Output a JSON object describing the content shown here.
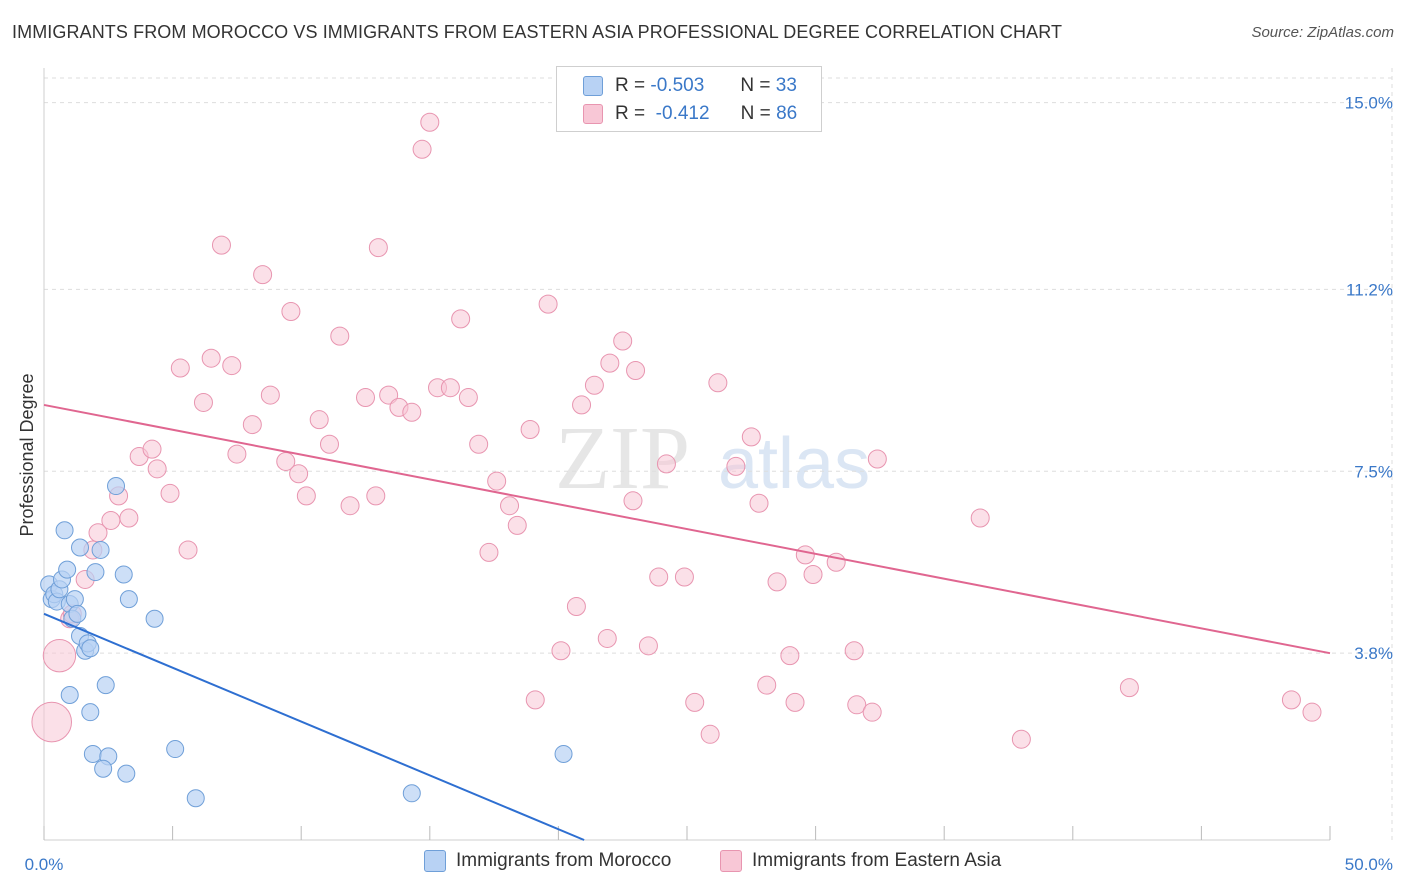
{
  "title": "IMMIGRANTS FROM MOROCCO VS IMMIGRANTS FROM EASTERN ASIA PROFESSIONAL DEGREE CORRELATION CHART",
  "source": "Source: ZipAtlas.com",
  "watermark": {
    "zip": "ZIP",
    "atlas": "atlas"
  },
  "legend": {
    "r_label": "R =",
    "n_label": "N =",
    "morocco": {
      "r": "-0.503",
      "n": "33"
    },
    "eastern_asia": {
      "r": "-0.412",
      "n": "86"
    }
  },
  "colors": {
    "morocco_fill": "#b8d2f4",
    "morocco_stroke": "#6f9fd8",
    "morocco_line": "#2e6fd1",
    "asia_fill": "#f8c7d6",
    "asia_stroke": "#e895b0",
    "asia_line": "#e06690",
    "tick_label": "#3a78c8",
    "grid": "#dddddd"
  },
  "chart_data": {
    "type": "scatter",
    "title": "IMMIGRANTS FROM MOROCCO VS IMMIGRANTS FROM EASTERN ASIA PROFESSIONAL DEGREE CORRELATION CHART",
    "xlabel": "",
    "ylabel": "Professional Degree",
    "xlim": [
      0,
      50
    ],
    "ylim": [
      0,
      15.5
    ],
    "x_tick_labels": [
      "0.0%",
      "50.0%"
    ],
    "y_ticks": [
      3.8,
      7.5,
      11.2,
      15.0
    ],
    "y_tick_labels": [
      "3.8%",
      "7.5%",
      "11.2%",
      "15.0%"
    ],
    "legend_position": "top-center",
    "series": [
      {
        "name": "Immigrants from Morocco",
        "r": -0.503,
        "n": 33,
        "trend": {
          "x": [
            0,
            21
          ],
          "y": [
            4.6,
            0
          ]
        },
        "points": [
          {
            "x": 0.2,
            "y": 5.2,
            "s": 1
          },
          {
            "x": 0.3,
            "y": 4.9,
            "s": 1
          },
          {
            "x": 0.4,
            "y": 5.0,
            "s": 1
          },
          {
            "x": 0.5,
            "y": 4.85,
            "s": 1
          },
          {
            "x": 0.6,
            "y": 5.1,
            "s": 1
          },
          {
            "x": 0.7,
            "y": 5.3,
            "s": 1
          },
          {
            "x": 0.8,
            "y": 6.3,
            "s": 1
          },
          {
            "x": 0.9,
            "y": 5.5,
            "s": 1
          },
          {
            "x": 1.0,
            "y": 4.8,
            "s": 1
          },
          {
            "x": 1.1,
            "y": 4.5,
            "s": 1
          },
          {
            "x": 1.2,
            "y": 4.9,
            "s": 1
          },
          {
            "x": 1.3,
            "y": 4.6,
            "s": 1
          },
          {
            "x": 1.4,
            "y": 4.15,
            "s": 1
          },
          {
            "x": 1.4,
            "y": 5.95,
            "s": 1
          },
          {
            "x": 1.6,
            "y": 3.85,
            "s": 1
          },
          {
            "x": 1.7,
            "y": 4.0,
            "s": 1
          },
          {
            "x": 1.8,
            "y": 3.9,
            "s": 1
          },
          {
            "x": 2.2,
            "y": 5.9,
            "s": 1
          },
          {
            "x": 2.0,
            "y": 5.45,
            "s": 1
          },
          {
            "x": 2.8,
            "y": 7.2,
            "s": 1
          },
          {
            "x": 3.1,
            "y": 5.4,
            "s": 1
          },
          {
            "x": 3.3,
            "y": 4.9,
            "s": 1
          },
          {
            "x": 1.0,
            "y": 2.95,
            "s": 1
          },
          {
            "x": 1.8,
            "y": 2.6,
            "s": 1
          },
          {
            "x": 2.4,
            "y": 3.15,
            "s": 1
          },
          {
            "x": 1.9,
            "y": 1.75,
            "s": 1
          },
          {
            "x": 2.5,
            "y": 1.7,
            "s": 1
          },
          {
            "x": 2.3,
            "y": 1.45,
            "s": 1
          },
          {
            "x": 3.2,
            "y": 1.35,
            "s": 1
          },
          {
            "x": 4.3,
            "y": 4.5,
            "s": 1
          },
          {
            "x": 5.1,
            "y": 1.85,
            "s": 1
          },
          {
            "x": 5.9,
            "y": 0.85,
            "s": 1
          },
          {
            "x": 14.3,
            "y": 0.95,
            "s": 1
          },
          {
            "x": 20.2,
            "y": 1.75,
            "s": 1
          }
        ]
      },
      {
        "name": "Immigrants from Eastern Asia",
        "r": -0.412,
        "n": 86,
        "trend": {
          "x": [
            0,
            50
          ],
          "y": [
            8.85,
            3.8
          ]
        },
        "points": [
          {
            "x": 0.3,
            "y": 2.4,
            "s": 2.2
          },
          {
            "x": 0.6,
            "y": 3.75,
            "s": 1.8
          },
          {
            "x": 1.0,
            "y": 4.5,
            "s": 1
          },
          {
            "x": 1.1,
            "y": 4.6,
            "s": 1
          },
          {
            "x": 1.6,
            "y": 5.3,
            "s": 1
          },
          {
            "x": 1.9,
            "y": 5.9,
            "s": 1
          },
          {
            "x": 2.1,
            "y": 6.25,
            "s": 1
          },
          {
            "x": 2.6,
            "y": 6.5,
            "s": 1
          },
          {
            "x": 2.9,
            "y": 7.0,
            "s": 1
          },
          {
            "x": 3.3,
            "y": 6.55,
            "s": 1
          },
          {
            "x": 3.7,
            "y": 7.8,
            "s": 1
          },
          {
            "x": 4.2,
            "y": 7.95,
            "s": 1
          },
          {
            "x": 4.4,
            "y": 7.55,
            "s": 1
          },
          {
            "x": 4.9,
            "y": 7.05,
            "s": 1
          },
          {
            "x": 5.3,
            "y": 9.6,
            "s": 1
          },
          {
            "x": 5.6,
            "y": 5.9,
            "s": 1
          },
          {
            "x": 6.2,
            "y": 8.9,
            "s": 1
          },
          {
            "x": 6.5,
            "y": 9.8,
            "s": 1
          },
          {
            "x": 6.9,
            "y": 12.1,
            "s": 1
          },
          {
            "x": 7.3,
            "y": 9.65,
            "s": 1
          },
          {
            "x": 7.5,
            "y": 7.85,
            "s": 1
          },
          {
            "x": 8.1,
            "y": 8.45,
            "s": 1
          },
          {
            "x": 8.5,
            "y": 11.5,
            "s": 1
          },
          {
            "x": 8.8,
            "y": 9.05,
            "s": 1
          },
          {
            "x": 9.4,
            "y": 7.7,
            "s": 1
          },
          {
            "x": 9.6,
            "y": 10.75,
            "s": 1
          },
          {
            "x": 9.9,
            "y": 7.45,
            "s": 1
          },
          {
            "x": 10.2,
            "y": 7.0,
            "s": 1
          },
          {
            "x": 10.7,
            "y": 8.55,
            "s": 1
          },
          {
            "x": 11.1,
            "y": 8.05,
            "s": 1
          },
          {
            "x": 11.5,
            "y": 10.25,
            "s": 1
          },
          {
            "x": 11.9,
            "y": 6.8,
            "s": 1
          },
          {
            "x": 12.5,
            "y": 9.0,
            "s": 1
          },
          {
            "x": 12.9,
            "y": 7.0,
            "s": 1
          },
          {
            "x": 13.0,
            "y": 12.05,
            "s": 1
          },
          {
            "x": 13.4,
            "y": 9.05,
            "s": 1
          },
          {
            "x": 13.8,
            "y": 8.8,
            "s": 1
          },
          {
            "x": 14.3,
            "y": 8.7,
            "s": 1
          },
          {
            "x": 14.7,
            "y": 14.05,
            "s": 1
          },
          {
            "x": 15.0,
            "y": 14.6,
            "s": 1
          },
          {
            "x": 15.3,
            "y": 9.2,
            "s": 1
          },
          {
            "x": 15.8,
            "y": 9.2,
            "s": 1
          },
          {
            "x": 16.2,
            "y": 10.6,
            "s": 1
          },
          {
            "x": 16.5,
            "y": 9.0,
            "s": 1
          },
          {
            "x": 16.9,
            "y": 8.05,
            "s": 1
          },
          {
            "x": 17.3,
            "y": 5.85,
            "s": 1
          },
          {
            "x": 17.6,
            "y": 7.3,
            "s": 1
          },
          {
            "x": 18.1,
            "y": 6.8,
            "s": 1
          },
          {
            "x": 18.4,
            "y": 6.4,
            "s": 1
          },
          {
            "x": 18.9,
            "y": 8.35,
            "s": 1
          },
          {
            "x": 19.1,
            "y": 2.85,
            "s": 1
          },
          {
            "x": 19.6,
            "y": 10.9,
            "s": 1
          },
          {
            "x": 20.1,
            "y": 3.85,
            "s": 1
          },
          {
            "x": 20.7,
            "y": 4.75,
            "s": 1
          },
          {
            "x": 20.9,
            "y": 8.85,
            "s": 1
          },
          {
            "x": 21.4,
            "y": 9.25,
            "s": 1
          },
          {
            "x": 21.9,
            "y": 4.1,
            "s": 1
          },
          {
            "x": 22.0,
            "y": 9.7,
            "s": 1
          },
          {
            "x": 22.5,
            "y": 10.15,
            "s": 1
          },
          {
            "x": 22.9,
            "y": 6.9,
            "s": 1
          },
          {
            "x": 23.0,
            "y": 9.55,
            "s": 1
          },
          {
            "x": 23.5,
            "y": 3.95,
            "s": 1
          },
          {
            "x": 23.9,
            "y": 5.35,
            "s": 1
          },
          {
            "x": 24.2,
            "y": 7.65,
            "s": 1
          },
          {
            "x": 24.9,
            "y": 5.35,
            "s": 1
          },
          {
            "x": 25.3,
            "y": 2.8,
            "s": 1
          },
          {
            "x": 25.9,
            "y": 2.15,
            "s": 1
          },
          {
            "x": 26.2,
            "y": 9.3,
            "s": 1
          },
          {
            "x": 26.9,
            "y": 7.6,
            "s": 1
          },
          {
            "x": 27.5,
            "y": 8.2,
            "s": 1
          },
          {
            "x": 27.8,
            "y": 6.85,
            "s": 1
          },
          {
            "x": 28.1,
            "y": 3.15,
            "s": 1
          },
          {
            "x": 28.5,
            "y": 5.25,
            "s": 1
          },
          {
            "x": 29.0,
            "y": 3.75,
            "s": 1
          },
          {
            "x": 29.2,
            "y": 2.8,
            "s": 1
          },
          {
            "x": 29.6,
            "y": 5.8,
            "s": 1
          },
          {
            "x": 29.9,
            "y": 5.4,
            "s": 1
          },
          {
            "x": 30.8,
            "y": 5.65,
            "s": 1
          },
          {
            "x": 31.5,
            "y": 3.85,
            "s": 1
          },
          {
            "x": 31.6,
            "y": 2.75,
            "s": 1
          },
          {
            "x": 32.4,
            "y": 7.75,
            "s": 1
          },
          {
            "x": 32.2,
            "y": 2.6,
            "s": 1
          },
          {
            "x": 36.4,
            "y": 6.55,
            "s": 1
          },
          {
            "x": 38.0,
            "y": 2.05,
            "s": 1
          },
          {
            "x": 42.2,
            "y": 3.1,
            "s": 1
          },
          {
            "x": 48.5,
            "y": 2.85,
            "s": 1
          },
          {
            "x": 49.3,
            "y": 2.6,
            "s": 1
          }
        ]
      }
    ]
  },
  "bottom_legend": {
    "morocco": "Immigrants from Morocco",
    "eastern_asia": "Immigrants from Eastern Asia"
  }
}
